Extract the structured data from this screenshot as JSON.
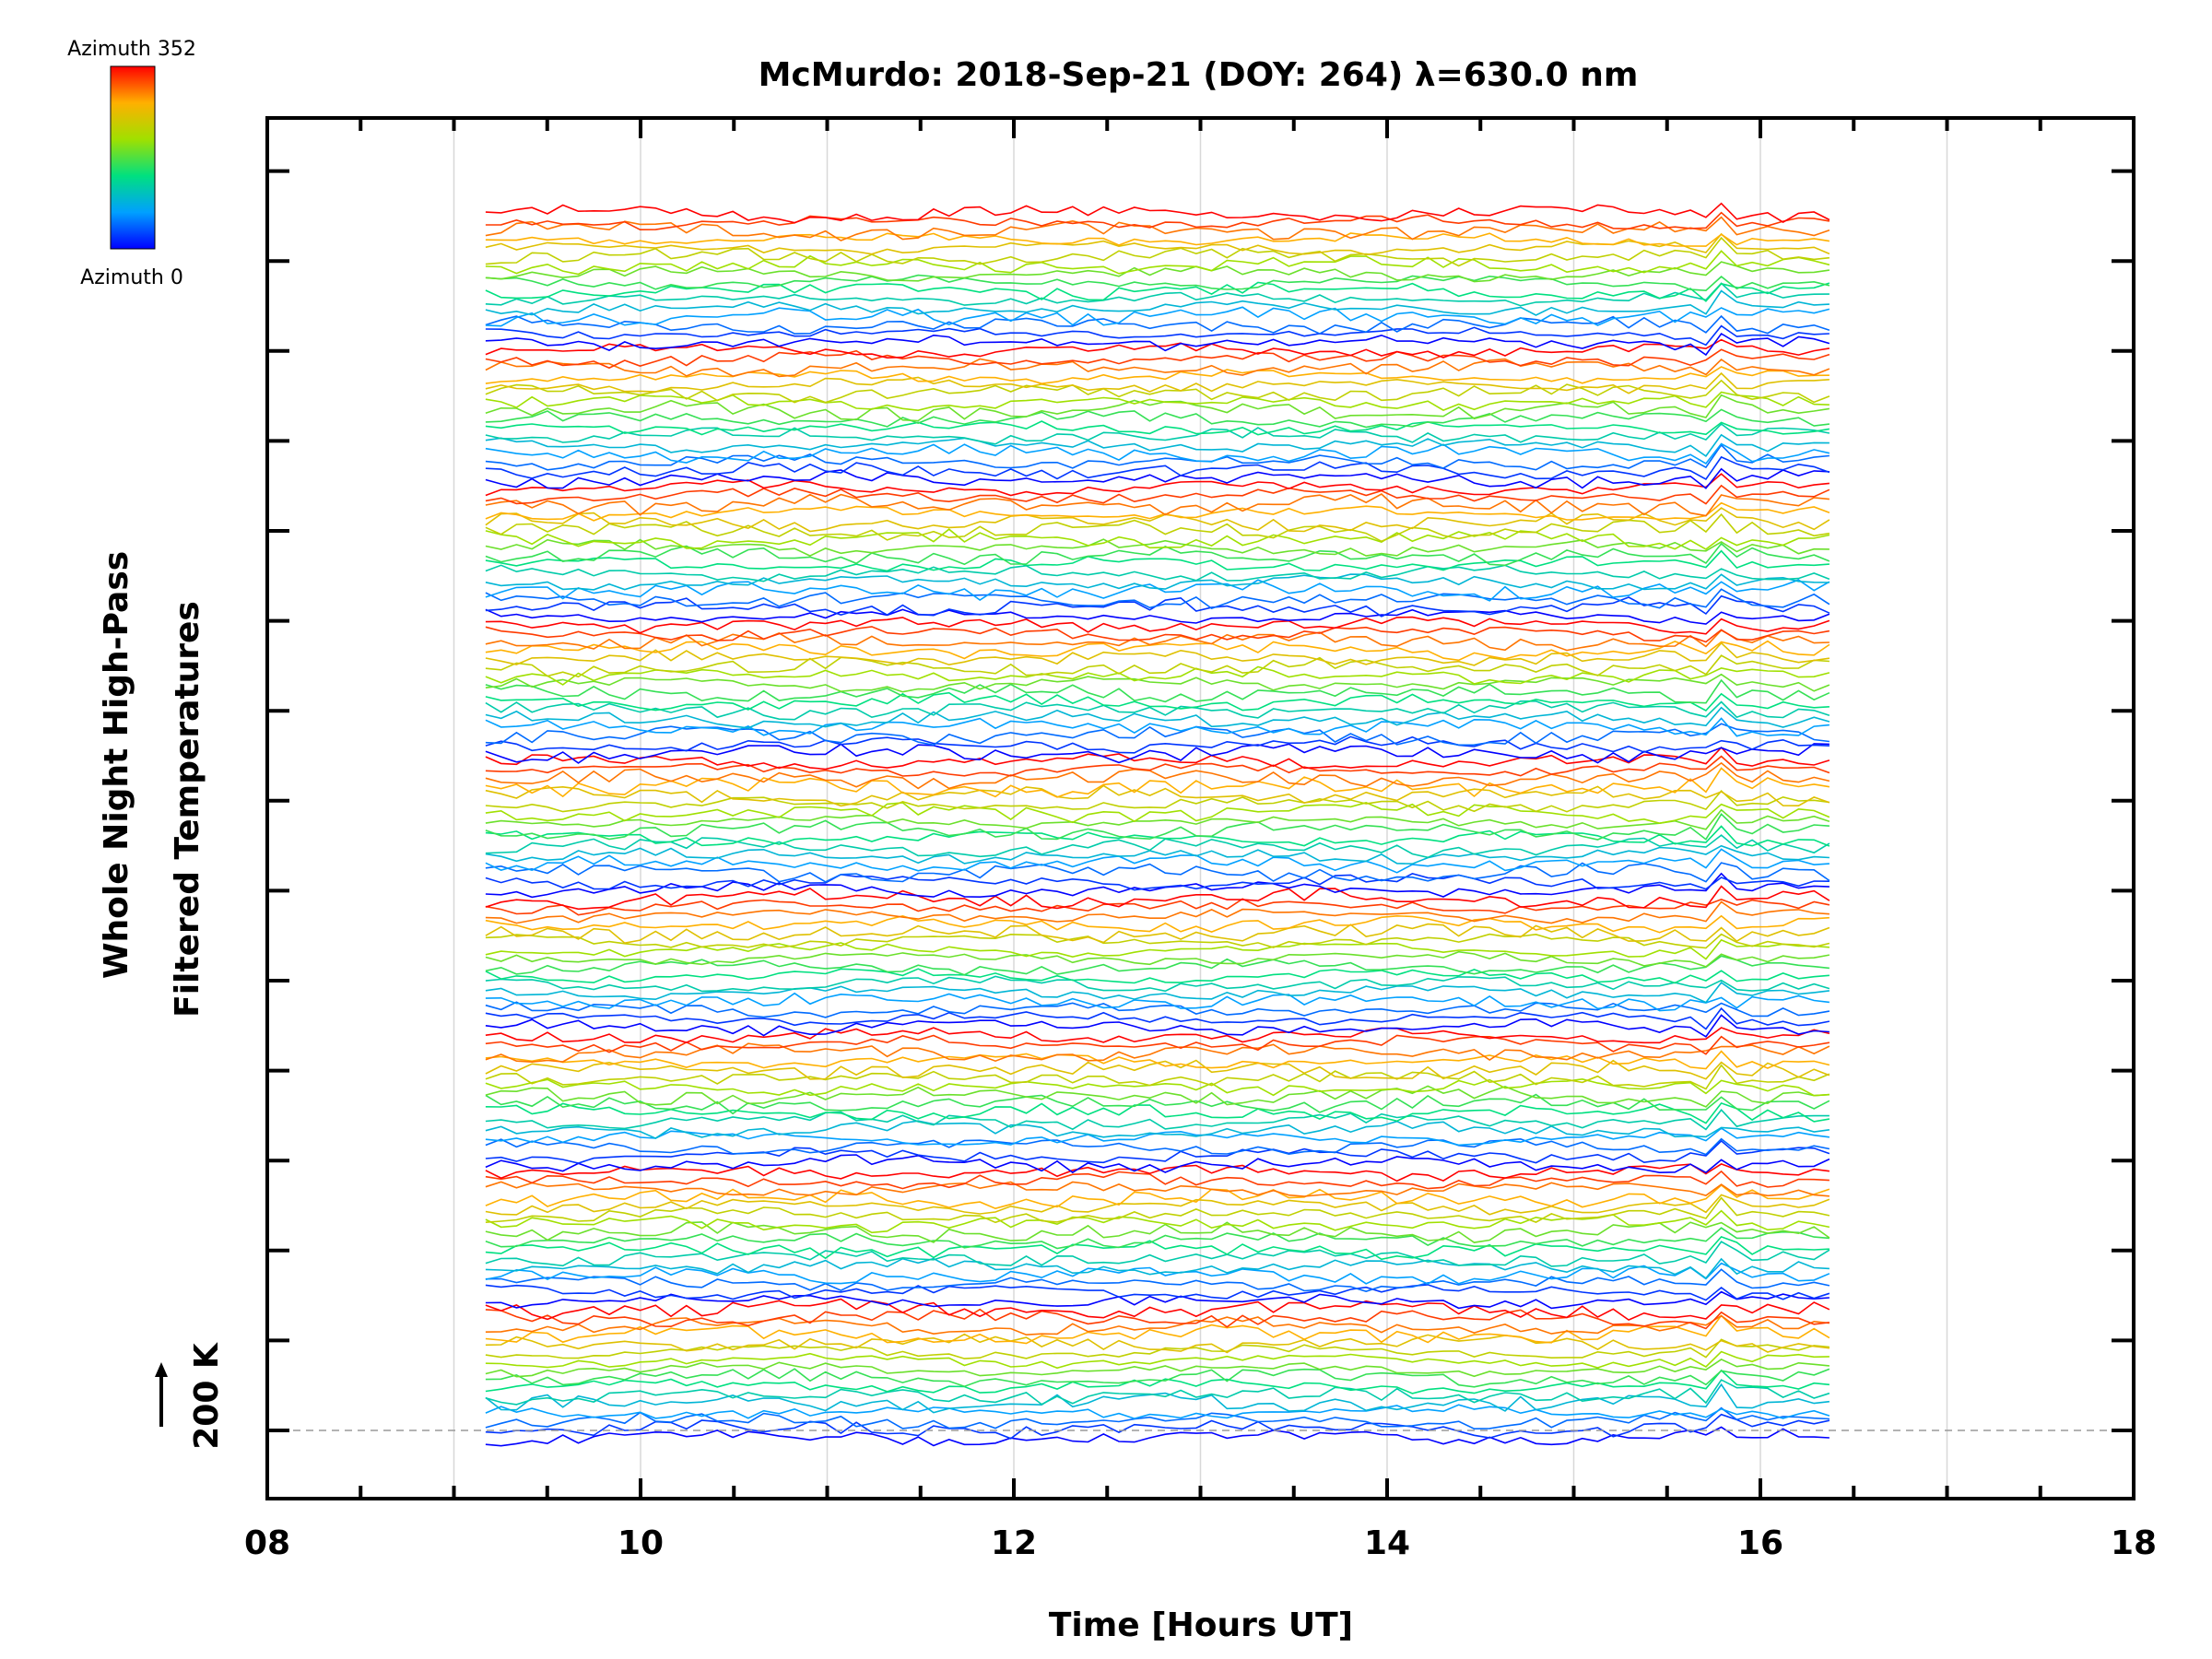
{
  "chart_data": {
    "type": "line",
    "title": "McMurdo: 2018-Sep-21 (DOY: 264) λ=630.0 nm",
    "xlabel": "Time [Hours UT]",
    "ylabel_line1": "Whole Night High-Pass",
    "ylabel_line2": "Filtered Temperatures",
    "xlim": [
      8,
      18
    ],
    "x_tick_labels": [
      "08",
      "10",
      "12",
      "14",
      "16",
      "18"
    ],
    "x_tick_values": [
      8,
      10,
      12,
      14,
      16,
      18
    ],
    "x_gridlines": [
      9,
      10,
      11,
      12,
      13,
      14,
      15,
      16,
      17
    ],
    "y_scale_label": "200 K",
    "y_reference_line": "dashed baseline at lowest trace offset",
    "colorbar": {
      "top_label": "Azimuth 352",
      "bottom_label": "Azimuth 0",
      "colormap": "rainbow (blue=0 to red=352)"
    },
    "data_time_range_hours": [
      9.17,
      16.37
    ],
    "num_traces": 144,
    "trace_groups": 9,
    "traces_per_group": 16,
    "trace_note": "Stacked high-pass filtered temperature traces, one per azimuth, vertically offset; ~200 K offset scale"
  },
  "colors": {
    "axis": "#000000",
    "grid": "#d8d8d8",
    "reference": "#9a9a9a"
  }
}
